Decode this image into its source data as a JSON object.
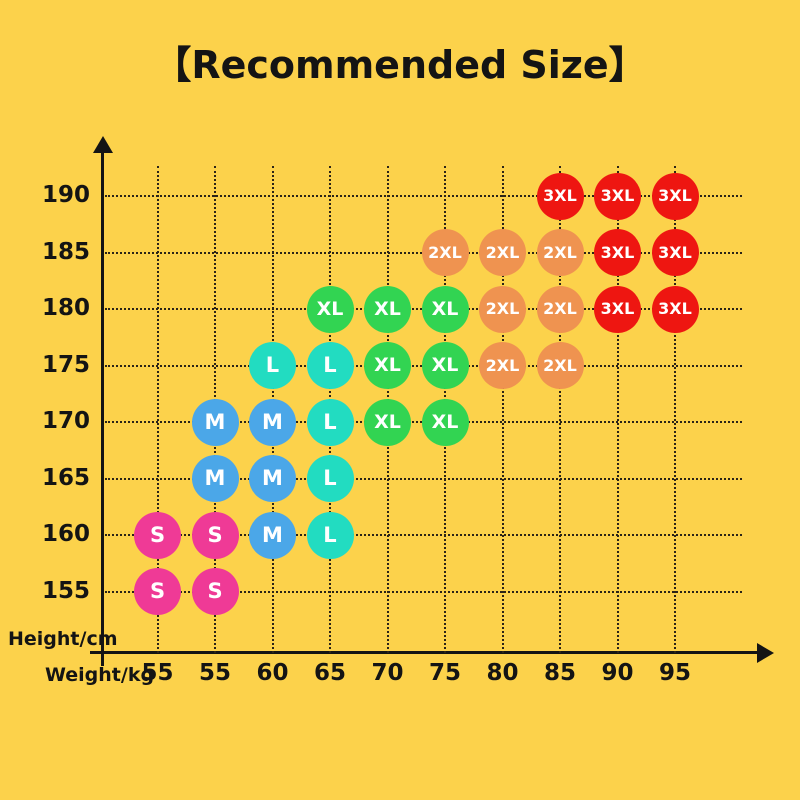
{
  "title": "【Recommended Size】",
  "colors": {
    "background": "#FCD24B",
    "axis": "#141414",
    "grid_dots": "#2b2417",
    "bubble_text": "#FFFFFF",
    "size_S": "#EF3A96",
    "size_M": "#4BA7E8",
    "size_L": "#22DCC1",
    "size_XL": "#32D452",
    "size_2XL": "#EF9350",
    "size_3XL": "#EE1611"
  },
  "chart_data": {
    "type": "scatter",
    "title": "【Recommended Size】",
    "xlabel": "Weight/kg",
    "ylabel": "Height/cm",
    "x_tick_labels": [
      "55",
      "55",
      "60",
      "65",
      "70",
      "75",
      "80",
      "85",
      "90",
      "95"
    ],
    "y_ticks": [
      190,
      185,
      180,
      175,
      170,
      165,
      160,
      155
    ],
    "grid": true,
    "legend_position": "none",
    "x_range_note": "weight axis columns, two 55 kg columns as printed",
    "sizes": {
      "S": "#EF3A96",
      "M": "#4BA7E8",
      "L": "#22DCC1",
      "XL": "#32D452",
      "2XL": "#EF9350",
      "3XL": "#EE1611"
    },
    "points": [
      {
        "height": 190,
        "col": 7,
        "weight": "85",
        "size": "3XL"
      },
      {
        "height": 190,
        "col": 8,
        "weight": "90",
        "size": "3XL"
      },
      {
        "height": 190,
        "col": 9,
        "weight": "95",
        "size": "3XL"
      },
      {
        "height": 185,
        "col": 5,
        "weight": "75",
        "size": "2XL"
      },
      {
        "height": 185,
        "col": 6,
        "weight": "80",
        "size": "2XL"
      },
      {
        "height": 185,
        "col": 7,
        "weight": "85",
        "size": "2XL"
      },
      {
        "height": 185,
        "col": 8,
        "weight": "90",
        "size": "3XL"
      },
      {
        "height": 185,
        "col": 9,
        "weight": "95",
        "size": "3XL"
      },
      {
        "height": 180,
        "col": 3,
        "weight": "65",
        "size": "XL"
      },
      {
        "height": 180,
        "col": 4,
        "weight": "70",
        "size": "XL"
      },
      {
        "height": 180,
        "col": 5,
        "weight": "75",
        "size": "XL"
      },
      {
        "height": 180,
        "col": 6,
        "weight": "80",
        "size": "2XL"
      },
      {
        "height": 180,
        "col": 7,
        "weight": "85",
        "size": "2XL"
      },
      {
        "height": 180,
        "col": 8,
        "weight": "90",
        "size": "3XL"
      },
      {
        "height": 180,
        "col": 9,
        "weight": "95",
        "size": "3XL"
      },
      {
        "height": 175,
        "col": 2,
        "weight": "60",
        "size": "L"
      },
      {
        "height": 175,
        "col": 3,
        "weight": "65",
        "size": "L"
      },
      {
        "height": 175,
        "col": 4,
        "weight": "70",
        "size": "XL"
      },
      {
        "height": 175,
        "col": 5,
        "weight": "75",
        "size": "XL"
      },
      {
        "height": 175,
        "col": 6,
        "weight": "80",
        "size": "2XL"
      },
      {
        "height": 175,
        "col": 7,
        "weight": "85",
        "size": "2XL"
      },
      {
        "height": 170,
        "col": 1,
        "weight": "55",
        "size": "M"
      },
      {
        "height": 170,
        "col": 2,
        "weight": "60",
        "size": "M"
      },
      {
        "height": 170,
        "col": 3,
        "weight": "65",
        "size": "L"
      },
      {
        "height": 170,
        "col": 4,
        "weight": "70",
        "size": "XL"
      },
      {
        "height": 170,
        "col": 5,
        "weight": "75",
        "size": "XL"
      },
      {
        "height": 165,
        "col": 1,
        "weight": "55",
        "size": "M"
      },
      {
        "height": 165,
        "col": 2,
        "weight": "60",
        "size": "M"
      },
      {
        "height": 165,
        "col": 3,
        "weight": "65",
        "size": "L"
      },
      {
        "height": 160,
        "col": 0,
        "weight": "55",
        "size": "S"
      },
      {
        "height": 160,
        "col": 1,
        "weight": "55",
        "size": "S"
      },
      {
        "height": 160,
        "col": 2,
        "weight": "60",
        "size": "M"
      },
      {
        "height": 160,
        "col": 3,
        "weight": "65",
        "size": "L"
      },
      {
        "height": 155,
        "col": 0,
        "weight": "55",
        "size": "S"
      },
      {
        "height": 155,
        "col": 1,
        "weight": "55",
        "size": "S"
      }
    ]
  }
}
